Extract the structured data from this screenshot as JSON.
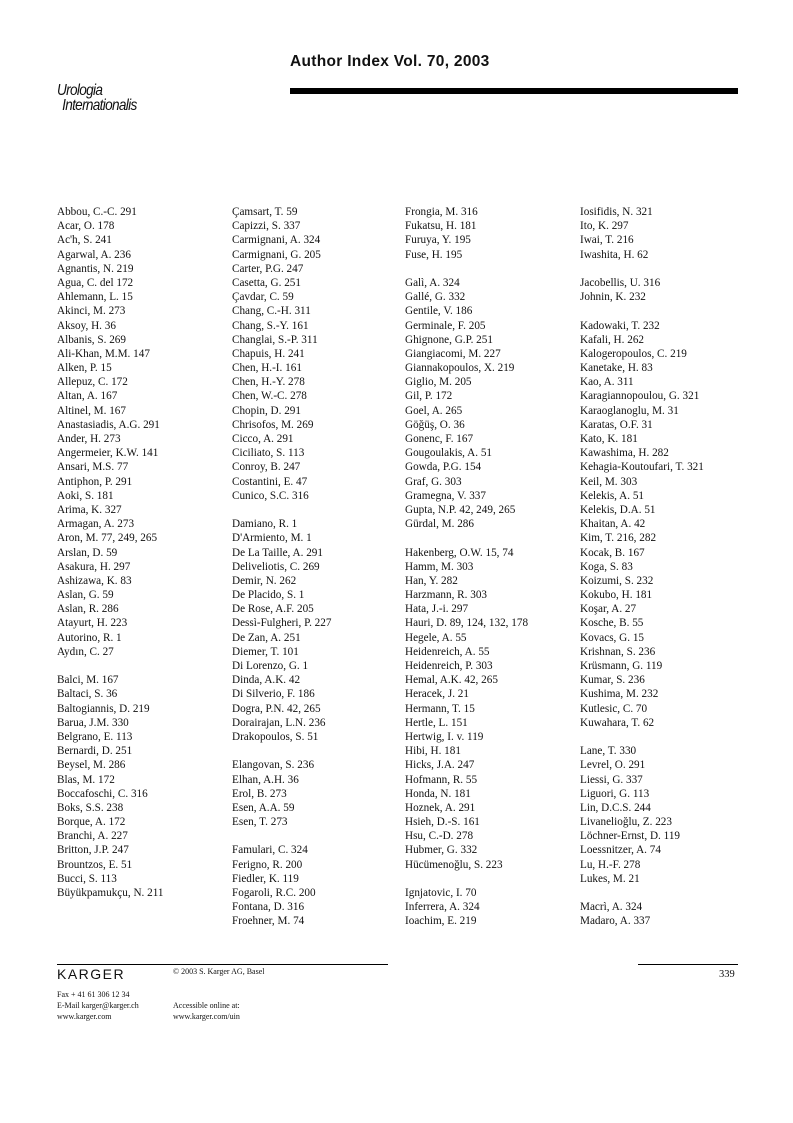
{
  "header": {
    "title": "Author Index Vol. 70, 2003",
    "journal_line1": "Urologia",
    "journal_line2": "Internationalis"
  },
  "columns": [
    [
      "Abbou, C.-C.  291",
      "Acar, O.  178",
      "Ac'h, S.  241",
      "Agarwal, A.  236",
      "Agnantis, N.  219",
      "Agua, C. del  172",
      "Ahlemann, L.  15",
      "Akinci, M.  273",
      "Aksoy, H.  36",
      "Albanis, S.  269",
      "Ali-Khan, M.M.  147",
      "Alken, P.  15",
      "Allepuz, C.  172",
      "Altan, A.  167",
      "Altinel, M.  167",
      "Anastasiadis, A.G.  291",
      "Ander, H.  273",
      "Angermeier, K.W.  141",
      "Ansari, M.S.  77",
      "Antiphon, P.  291",
      "Aoki, S.  181",
      "Arima, K.  327",
      "Armagan, A.  273",
      "Aron, M.  77, 249, 265",
      "Arslan, D.  59",
      "Asakura, H.  297",
      "Ashizawa, K.  83",
      "Aslan, G.  59",
      "Aslan, R.  286",
      "Atayurt, H.  223",
      "Autorino, R.  1",
      "Aydın, C.  27",
      "",
      "Balci, M.  167",
      "Baltaci, S.  36",
      "Baltogiannis, D.  219",
      "Barua, J.M.  330",
      "Belgrano, E.  113",
      "Bernardi, D.  251",
      "Beysel, M.  286",
      "Blas, M.  172",
      "Boccafoschi, C.  316",
      "Boks, S.S.  238",
      "Borque, A.  172",
      "Branchi, A.  227",
      "Britton, J.P.  247",
      "Brountzos, E.  51",
      "Bucci, S.  113",
      "Büyükpamukçu, N.  211"
    ],
    [
      "Çamsart, T.  59",
      "Capizzi, S.  337",
      "Carmignani, A.  324",
      "Carmignani, G.  205",
      "Carter, P.G.  247",
      "Casetta, G.  251",
      "Çavdar, C.  59",
      "Chang, C.-H.  311",
      "Chang, S.-Y.  161",
      "Changlai, S.-P.  311",
      "Chapuis, H.  241",
      "Chen, H.-I.  161",
      "Chen, H.-Y.  278",
      "Chen, W.-C.  278",
      "Chopin, D.  291",
      "Chrisofos, M.  269",
      "Cicco, A.  291",
      "Ciciliato, S.  113",
      "Conroy, B.  247",
      "Costantini, E.  47",
      "Cunico, S.C.  316",
      "",
      "Damiano, R.  1",
      "D'Armiento, M.  1",
      "De La Taille, A.  291",
      "Deliveliotis, C.  269",
      "Demir, N.  262",
      "De Placido, S.  1",
      "De Rose, A.F.  205",
      "Dessì-Fulgheri, P.  227",
      "De Zan, A.  251",
      "Diemer, T.  101",
      "Di Lorenzo, G.  1",
      "Dinda, A.K.  42",
      "Di Silverio, F.  186",
      "Dogra, P.N.  42, 265",
      "Dorairajan, L.N.  236",
      "Drakopoulos, S.  51",
      "",
      "Elangovan, S.  236",
      "Elhan, A.H.  36",
      "Erol, B.  273",
      "Esen, A.A.  59",
      "Esen, T.  273",
      "",
      "Famulari, C.  324",
      "Ferigno, R.  200",
      "Fiedler, K.  119",
      "Fogaroli, R.C.  200",
      "Fontana, D.  316",
      "Froehner, M.  74"
    ],
    [
      "Frongia, M.  316",
      "Fukatsu, H.  181",
      "Furuya, Y.  195",
      "Fuse, H.  195",
      "",
      "Galì, A.  324",
      "Gallé, G.  332",
      "Gentile, V.  186",
      "Germinale, F.  205",
      "Ghignone, G.P.  251",
      "Giangiacomi, M.  227",
      "Giannakopoulos, X.  219",
      "Giglio, M.  205",
      "Gil, P.  172",
      "Goel, A.  265",
      "Göğüş, O.  36",
      "Gonenc, F.  167",
      "Gougoulakis, A.  51",
      "Gowda, P.G.  154",
      "Graf, G.  303",
      "Gramegna, V.  337",
      "Gupta, N.P.  42, 249, 265",
      "Gürdal, M.  286",
      "",
      "Hakenberg, O.W.  15, 74",
      "Hamm, M.  303",
      "Han, Y.  282",
      "Harzmann, R.  303",
      "Hata, J.-i.  297",
      "Hauri, D.  89, 124, 132, 178",
      "Hegele, A.  55",
      "Heidenreich, A.  55",
      "Heidenreich, P.  303",
      "Hemal, A.K.  42, 265",
      "Heracek, J.  21",
      "Hermann, T.  15",
      "Hertle, L.  151",
      "Hertwig, I. v.  119",
      "Hibi, H.  181",
      "Hicks, J.A.  247",
      "Hofmann, R.  55",
      "Honda, N.  181",
      "Hoznek, A.  291",
      "Hsieh, D.-S.  161",
      "Hsu, C.-D.  278",
      "Hubmer, G.  332",
      "Hücümenoğlu, S.  223",
      "",
      "Ignjatovic, I.  70",
      "Inferrera, A.  324",
      "Ioachim, E.  219"
    ],
    [
      "Iosifidis, N.  321",
      "Ito, K.  297",
      "Iwai, T.  216",
      "Iwashita, H.  62",
      "",
      "Jacobellis, U.  316",
      "Johnin, K.  232",
      "",
      "Kadowaki, T.  232",
      "Kafali, H.  262",
      "Kalogeropoulos, C.  219",
      "Kanetake, H.  83",
      "Kao, A.  311",
      "Karagiannopoulou, G.  321",
      "Karaoglanoglu, M.  31",
      "Karatas, O.F.  31",
      "Kato, K.  181",
      "Kawashima, H.  282",
      "Kehagia-Koutoufari, T.  321",
      "Keil, M.  303",
      "Kelekis, A.  51",
      "Kelekis, D.A.  51",
      "Khaitan, A.  42",
      "Kim, T.  216, 282",
      "Kocak, B.  167",
      "Koga, S.  83",
      "Koizumi, S.  232",
      "Kokubo, H.  181",
      "Koşar, A.  27",
      "Kosche, B.  55",
      "Kovacs, G.  15",
      "Krishnan, S.  236",
      "Krüsmann, G.  119",
      "Kumar, S.  236",
      "Kushima, M.  232",
      "Kutlesic, C.  70",
      "Kuwahara, T.  62",
      "",
      "Lane, T.  330",
      "Levrel, O.  291",
      "Liessi, G.  337",
      "Liguori, G.  113",
      "Lin, D.C.S.  244",
      "Livanelioğlu, Z.  223",
      "Löchner-Ernst, D.  119",
      "Loessnitzer, A.  74",
      "Lu, H.-F.  278",
      "Lukes, M.  21",
      "",
      "Macrì, A.  324",
      "Madaro, A.  337"
    ]
  ],
  "footer": {
    "publisher": "KARGER",
    "copyright": "© 2003 S. Karger AG, Basel",
    "fax": "Fax + 41 61 306 12 34",
    "email": "E-Mail karger@karger.ch",
    "web": "www.karger.com",
    "online_label": "Accessible online at:",
    "online_url": "www.karger.com/uin",
    "page_number": "339"
  }
}
